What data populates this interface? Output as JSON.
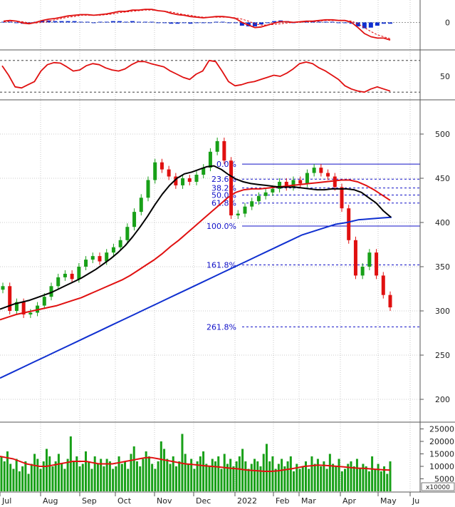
{
  "chart_data": {
    "type": "line",
    "panels": [
      "macd",
      "oscillator",
      "price",
      "volume"
    ],
    "months": [
      "Jul",
      "Aug",
      "Sep",
      "Oct",
      "Nov",
      "Dec",
      "2022",
      "Feb",
      "Mar",
      "Apr",
      "May",
      "Ju"
    ],
    "colors": {
      "up": "#18a018",
      "down": "#e01010",
      "ma_short": "#000000",
      "ma_mid": "#e01010",
      "ma_long": "#1030d0",
      "fib": "#1010c8",
      "vol_ma": "#e01010"
    },
    "macd": {
      "yticks": [
        "0"
      ],
      "line": [
        2,
        3,
        2,
        -1,
        -2,
        0,
        3,
        5,
        6,
        8,
        10,
        11,
        12,
        12,
        11,
        12,
        13,
        15,
        17,
        17,
        19,
        19,
        20,
        20,
        18,
        17,
        14,
        12,
        11,
        9,
        8,
        7,
        8,
        9,
        9,
        8,
        6,
        0,
        -4,
        -8,
        -7,
        -4,
        -1,
        1,
        1,
        0,
        1,
        2,
        2,
        3,
        4,
        4,
        3,
        3,
        0,
        -8,
        -17,
        -22,
        -24,
        -24,
        -27
      ],
      "signal": [
        1,
        2,
        2,
        1,
        -1,
        -1,
        0,
        2,
        4,
        6,
        8,
        9,
        11,
        11,
        11,
        11,
        12,
        13,
        15,
        16,
        17,
        18,
        19,
        19,
        18,
        17,
        16,
        14,
        12,
        11,
        9,
        8,
        8,
        8,
        8,
        8,
        7,
        5,
        2,
        -2,
        -4,
        -4,
        -3,
        -2,
        -1,
        0,
        0,
        1,
        1,
        2,
        3,
        3,
        3,
        3,
        2,
        -2,
        -8,
        -14,
        -19,
        -22,
        -25
      ]
    },
    "oscillator": {
      "yticks": [
        "50"
      ],
      "line": [
        70,
        52,
        30,
        28,
        34,
        40,
        60,
        72,
        76,
        75,
        68,
        60,
        62,
        70,
        74,
        72,
        66,
        62,
        60,
        64,
        72,
        78,
        78,
        74,
        71,
        68,
        60,
        54,
        48,
        44,
        54,
        60,
        80,
        78,
        60,
        40,
        32,
        34,
        38,
        40,
        44,
        48,
        52,
        50,
        56,
        64,
        74,
        77,
        74,
        66,
        60,
        52,
        44,
        32,
        26,
        22,
        20,
        26,
        30,
        26,
        22
      ]
    },
    "price": {
      "yticks": [
        "500",
        "450",
        "400",
        "350",
        "300",
        "250",
        "200"
      ],
      "close": [
        328,
        300,
        310,
        296,
        298,
        306,
        316,
        328,
        338,
        342,
        336,
        350,
        358,
        362,
        356,
        366,
        372,
        380,
        395,
        412,
        428,
        448,
        468,
        460,
        452,
        442,
        450,
        446,
        454,
        462,
        480,
        492,
        470,
        408,
        410,
        418,
        424,
        430,
        434,
        438,
        446,
        440,
        448,
        444,
        456,
        462,
        456,
        452,
        440,
        416,
        380,
        340,
        350,
        366,
        340,
        318,
        304
      ],
      "ma_short": [
        302,
        305,
        308,
        310,
        312,
        315,
        318,
        321,
        325,
        329,
        333,
        337,
        342,
        347,
        353,
        359,
        366,
        374,
        384,
        395,
        407,
        420,
        432,
        442,
        450,
        455,
        457,
        460,
        463,
        464,
        460,
        454,
        449,
        446,
        444,
        443,
        442,
        441,
        440,
        440,
        440,
        439,
        438,
        437,
        437,
        438,
        438,
        438,
        437,
        434,
        428,
        422,
        413,
        406
      ],
      "ma_mid": [
        290,
        293,
        296,
        298,
        300,
        302,
        304,
        306,
        309,
        312,
        315,
        319,
        323,
        327,
        331,
        335,
        340,
        346,
        352,
        358,
        365,
        373,
        380,
        388,
        396,
        404,
        412,
        420,
        428,
        434,
        437,
        438,
        438,
        439,
        440,
        441,
        442,
        443,
        444,
        445,
        446,
        447,
        448,
        448,
        446,
        442,
        437,
        431,
        425
      ],
      "ma_long": [
        224,
        230,
        236,
        242,
        248,
        254,
        260,
        266,
        272,
        278,
        284,
        290,
        296,
        302,
        308,
        314,
        320,
        326,
        332,
        338,
        344,
        350,
        356,
        362,
        368,
        374,
        380,
        386,
        390,
        394,
        398,
        400,
        403,
        404,
        405,
        406
      ],
      "fib_levels": [
        {
          "label": "0.0%",
          "value": 466
        },
        {
          "label": "23.6%",
          "value": 449
        },
        {
          "label": "38.2%",
          "value": 439
        },
        {
          "label": "50.0%",
          "value": 431
        },
        {
          "label": "61.8%",
          "value": 422
        },
        {
          "label": "100.0%",
          "value": 396
        },
        {
          "label": "161.8%",
          "value": 352
        },
        {
          "label": "261.8%",
          "value": 282
        }
      ]
    },
    "volume": {
      "yticks": [
        "25000",
        "20000",
        "15000",
        "10000",
        "5000"
      ],
      "unit": "x10000",
      "bars": [
        14,
        12,
        16,
        11,
        9,
        13,
        8,
        10,
        12,
        7,
        11,
        15,
        13,
        9,
        12,
        17,
        14,
        10,
        12,
        15,
        11,
        9,
        13,
        22,
        12,
        14,
        10,
        11,
        16,
        12,
        9,
        14,
        11,
        13,
        10,
        13,
        12,
        9,
        10,
        14,
        11,
        12,
        9,
        15,
        18,
        12,
        10,
        13,
        16,
        14,
        11,
        9,
        12,
        20,
        17,
        13,
        11,
        14,
        10,
        12,
        23,
        15,
        11,
        13,
        9,
        12,
        14,
        16,
        11,
        10,
        13,
        12,
        14,
        9,
        15,
        11,
        13,
        10,
        12,
        14,
        17,
        12,
        9,
        11,
        13,
        12,
        10,
        15,
        19,
        12,
        14,
        9,
        11,
        13,
        10,
        12,
        14,
        8,
        11,
        9,
        10,
        12,
        9,
        14,
        11,
        13,
        10,
        12,
        9,
        15,
        11,
        10,
        13,
        8,
        9,
        11,
        12,
        10,
        13,
        9,
        11,
        10,
        8,
        14,
        9,
        11,
        8,
        10,
        7,
        12
      ],
      "ma": [
        14,
        13.5,
        13,
        12,
        11,
        10.5,
        10,
        10,
        10.5,
        11,
        11.5,
        12,
        12,
        12,
        11.5,
        11,
        11,
        11,
        11.5,
        12,
        12.5,
        13,
        13.5,
        13.5,
        13,
        12.5,
        12,
        11.5,
        11,
        10.8,
        10.5,
        10.2,
        10,
        9.8,
        9.5,
        9.2,
        9,
        8.6,
        8.4,
        8.2,
        8,
        8,
        8.2,
        8.6,
        9,
        9.5,
        10,
        10.2,
        10.5,
        10.4,
        10.2,
        10,
        9.8,
        9.5,
        9.3,
        9.2,
        9,
        8.8,
        8.6,
        8.5
      ]
    }
  }
}
